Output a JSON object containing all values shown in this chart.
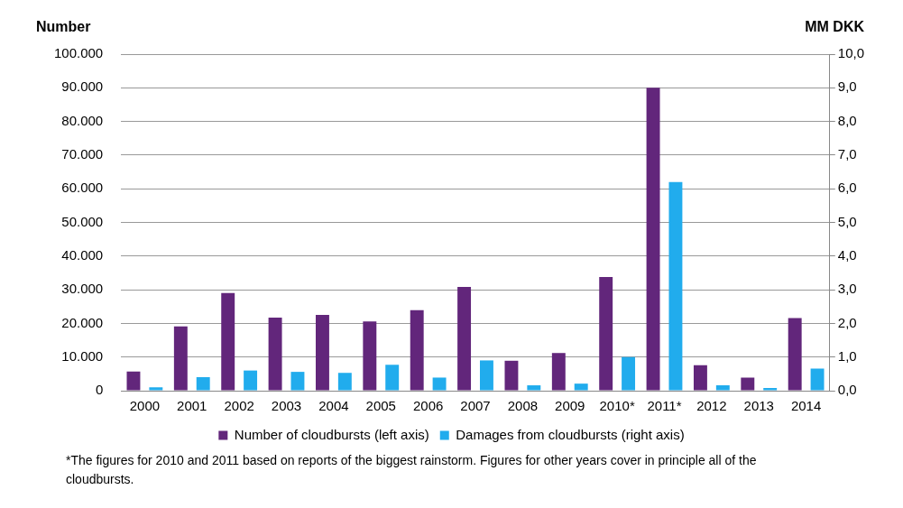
{
  "chart_data": {
    "type": "bar",
    "ylabel": "Number",
    "y2label": "MM DKK",
    "categories": [
      "2000",
      "2001",
      "2002",
      "2003",
      "2004",
      "2005",
      "2006",
      "2007",
      "2008",
      "2009",
      "2010*",
      "2011*",
      "2012",
      "2013",
      "2014"
    ],
    "series": [
      {
        "name": "Number of cloudbursts (left axis)",
        "color": "#62267b",
        "values": [
          5700,
          19100,
          29000,
          21700,
          22500,
          20600,
          23900,
          30800,
          8900,
          11200,
          33800,
          90000,
          7600,
          3900,
          21600
        ]
      },
      {
        "name": "Damages from cloudbursts (right axis)",
        "color": "#21aced",
        "axis": "y2",
        "values": [
          0.1,
          0.4,
          0.6,
          0.56,
          0.53,
          0.77,
          0.39,
          0.9,
          0.16,
          0.21,
          1.0,
          6.2,
          0.16,
          0.08,
          0.66
        ]
      }
    ],
    "ylim": [
      0,
      100000
    ],
    "yticks": [
      0,
      {
        "value": 10000,
        "label": "10.000"
      },
      {
        "value": 20000,
        "label": "20.000"
      },
      {
        "value": 30000,
        "label": "30.000"
      },
      {
        "value": 40000,
        "label": "40.000"
      },
      {
        "value": 50000,
        "label": "50.000"
      },
      {
        "value": 60000,
        "label": "60.000"
      },
      {
        "value": 70000,
        "label": "70.000"
      },
      {
        "value": 80000,
        "label": "80.000"
      },
      {
        "value": 90000,
        "label": "90.000"
      },
      {
        "value": 100000,
        "label": "100.000"
      }
    ],
    "y2lim": [
      0,
      10
    ],
    "y2ticks": [
      {
        "value": 0,
        "label": "0,0"
      },
      {
        "value": 1,
        "label": "1,0"
      },
      {
        "value": 2,
        "label": "2,0"
      },
      {
        "value": 3,
        "label": "3,0"
      },
      {
        "value": 4,
        "label": "4,0"
      },
      {
        "value": 5,
        "label": "5,0"
      },
      {
        "value": 6,
        "label": "6,0"
      },
      {
        "value": 7,
        "label": "7,0"
      },
      {
        "value": 8,
        "label": "8,0"
      },
      {
        "value": 9,
        "label": "9,0"
      },
      {
        "value": 10,
        "label": "10,0"
      }
    ],
    "grid": "y",
    "legend": "bottom",
    "annotations": [
      "*The figures for 2010 and 2011 based on reports of the biggest rainstorm. Figures for other years cover in principle all of the cloudbursts."
    ]
  }
}
